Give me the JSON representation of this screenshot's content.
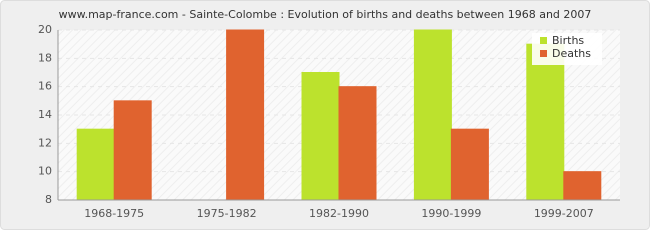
{
  "chart_data": {
    "type": "bar",
    "title": "www.map-france.com - Sainte-Colombe : Evolution of births and deaths between 1968 and 2007",
    "categories": [
      "1968-1975",
      "1975-1982",
      "1982-1990",
      "1990-1999",
      "1999-2007"
    ],
    "series": [
      {
        "name": "Births",
        "color": "#bce22d",
        "values": [
          13,
          8,
          17,
          20,
          19
        ]
      },
      {
        "name": "Deaths",
        "color": "#e0632f",
        "values": [
          15,
          20,
          16,
          13,
          10
        ]
      }
    ],
    "ylim": [
      8,
      20
    ],
    "yticks": [
      8,
      10,
      12,
      14,
      16,
      18,
      20
    ],
    "grid": true,
    "legend": "top-right"
  }
}
